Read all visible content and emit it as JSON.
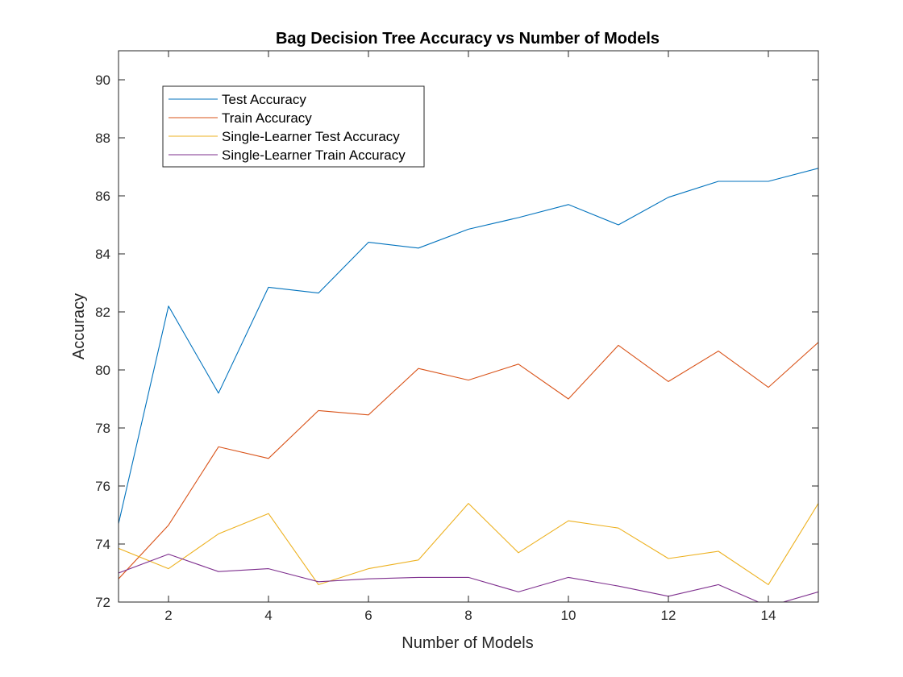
{
  "chart_data": {
    "type": "line",
    "title": "Bag Decision Tree Accuracy vs Number of Models",
    "xlabel": "Number of Models",
    "ylabel": "Accuracy",
    "xlim": [
      1,
      15
    ],
    "ylim": [
      72,
      91
    ],
    "xticks": [
      2,
      4,
      6,
      8,
      10,
      12,
      14
    ],
    "yticks": [
      72,
      74,
      76,
      78,
      80,
      82,
      84,
      86,
      88,
      90
    ],
    "grid": false,
    "legend": "top-left",
    "x": [
      1,
      2,
      3,
      4,
      5,
      6,
      7,
      8,
      9,
      10,
      11,
      12,
      13,
      14,
      15
    ],
    "series": [
      {
        "name": "Test Accuracy",
        "color": "#0072BD",
        "values": [
          74.7,
          82.2,
          79.2,
          82.85,
          82.65,
          84.4,
          84.2,
          84.85,
          85.25,
          85.7,
          85.0,
          85.95,
          86.5,
          86.5,
          86.95
        ]
      },
      {
        "name": "Train Accuracy",
        "color": "#D95319",
        "values": [
          72.8,
          74.65,
          77.35,
          76.95,
          78.6,
          78.45,
          80.05,
          79.65,
          80.2,
          79.0,
          80.85,
          79.6,
          80.65,
          79.4,
          80.95
        ]
      },
      {
        "name": "Single-Learner Test Accuracy",
        "color": "#EDB120",
        "values": [
          73.85,
          73.15,
          74.35,
          75.05,
          72.6,
          73.15,
          73.45,
          75.4,
          73.7,
          74.8,
          74.55,
          73.5,
          73.75,
          72.6,
          75.4
        ]
      },
      {
        "name": "Single-Learner Train Accuracy",
        "color": "#7E2F8E",
        "values": [
          73.0,
          73.65,
          73.05,
          73.15,
          72.7,
          72.8,
          72.85,
          72.85,
          72.35,
          72.85,
          72.55,
          72.2,
          72.6,
          71.85,
          72.35
        ]
      }
    ]
  }
}
